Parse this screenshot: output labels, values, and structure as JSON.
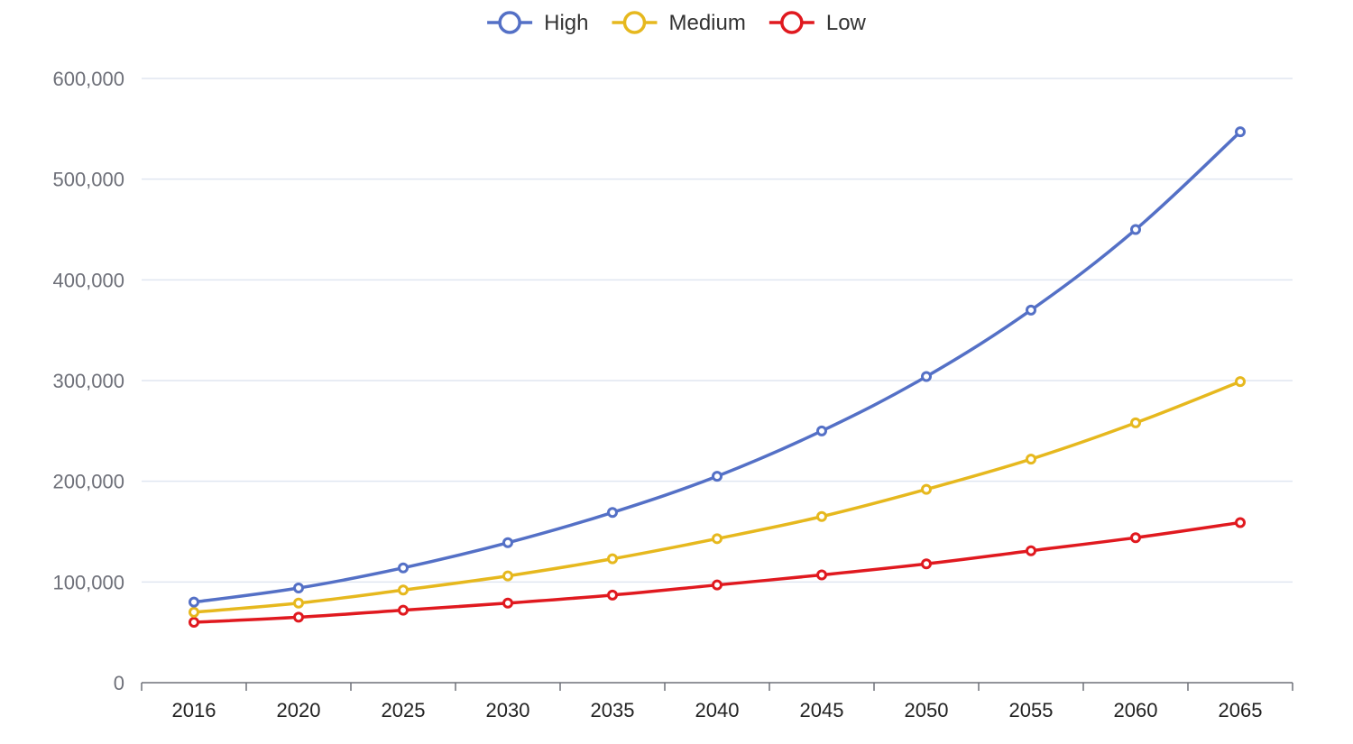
{
  "chart_data": {
    "type": "line",
    "categories": [
      "2016",
      "2020",
      "2025",
      "2030",
      "2035",
      "2040",
      "2045",
      "2050",
      "2055",
      "2060",
      "2065"
    ],
    "series": [
      {
        "name": "High",
        "color": "#5470c6",
        "values": [
          80000,
          94000,
          114000,
          139000,
          169000,
          205000,
          250000,
          304000,
          370000,
          450000,
          547000
        ]
      },
      {
        "name": "Medium",
        "color": "#e6b81e",
        "values": [
          70000,
          79000,
          92000,
          106000,
          123000,
          143000,
          165000,
          192000,
          222000,
          258000,
          299000
        ]
      },
      {
        "name": "Low",
        "color": "#e0191f",
        "values": [
          60000,
          65000,
          72000,
          79000,
          87000,
          97000,
          107000,
          118000,
          131000,
          144000,
          159000
        ]
      }
    ],
    "yticks": [
      "0",
      "100,000",
      "200,000",
      "300,000",
      "400,000",
      "500,000",
      "600,000"
    ],
    "ylim": [
      0,
      600000
    ],
    "legend_position": "top-center",
    "smooth": true,
    "grid": true
  }
}
